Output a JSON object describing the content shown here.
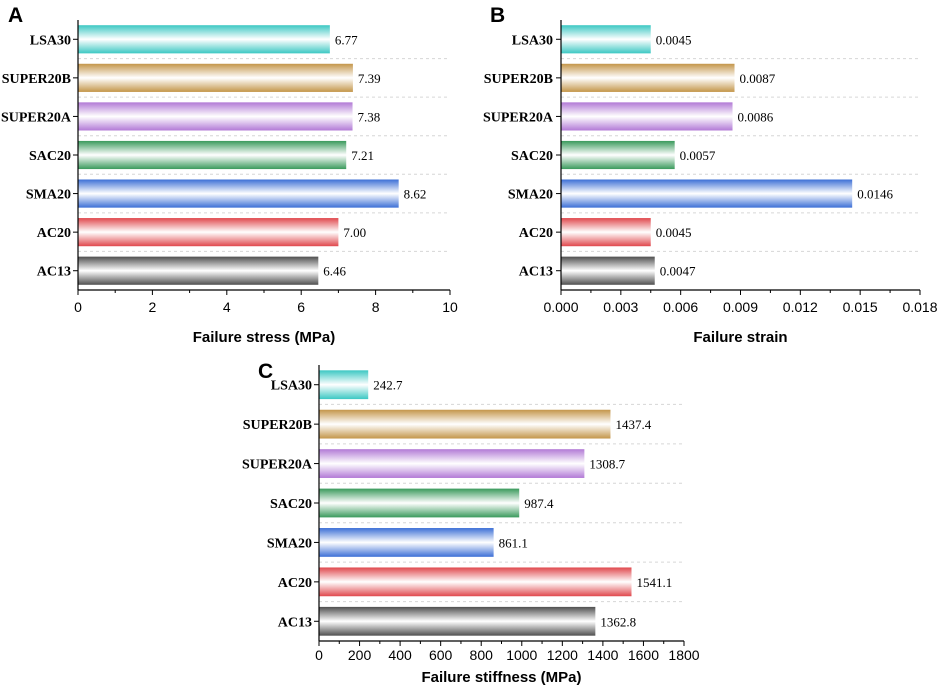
{
  "colors": {
    "LSA30": "#3cc8c3",
    "SUPER20B": "#c4964a",
    "SUPER20A": "#b27ad6",
    "SAC20": "#3a9a5c",
    "SMA20": "#3c6fd6",
    "AC20": "#e0484d",
    "AC13": "#4f4f4f"
  },
  "chart_data": [
    {
      "type": "bar",
      "orientation": "horizontal",
      "panel": "A",
      "categories": [
        "LSA30",
        "SUPER20B",
        "SUPER20A",
        "SAC20",
        "SMA20",
        "AC20",
        "AC13"
      ],
      "values": [
        6.77,
        7.39,
        7.38,
        7.21,
        8.62,
        7.0,
        6.46
      ],
      "value_labels": [
        "6.77",
        "7.39",
        "7.38",
        "7.21",
        "8.62",
        "7.00",
        "6.46"
      ],
      "xlabel": "Failure stress (MPa)",
      "xlim": [
        0,
        10
      ],
      "xticks": [
        "0",
        "2",
        "4",
        "6",
        "8",
        "10"
      ],
      "grid": "horizontal dashed"
    },
    {
      "type": "bar",
      "orientation": "horizontal",
      "panel": "B",
      "categories": [
        "LSA30",
        "SUPER20B",
        "SUPER20A",
        "SAC20",
        "SMA20",
        "AC20",
        "AC13"
      ],
      "values": [
        0.0045,
        0.0087,
        0.0086,
        0.0057,
        0.0146,
        0.0045,
        0.0047
      ],
      "value_labels": [
        "0.0045",
        "0.0087",
        "0.0086",
        "0.0057",
        "0.0146",
        "0.0045",
        "0.0047"
      ],
      "xlabel": "Failure strain",
      "xlim": [
        0,
        0.018
      ],
      "xticks": [
        "0.000",
        "0.003",
        "0.006",
        "0.009",
        "0.012",
        "0.015",
        "0.018"
      ],
      "grid": "horizontal dashed"
    },
    {
      "type": "bar",
      "orientation": "horizontal",
      "panel": "C",
      "categories": [
        "LSA30",
        "SUPER20B",
        "SUPER20A",
        "SAC20",
        "SMA20",
        "AC20",
        "AC13"
      ],
      "values": [
        242.7,
        1437.4,
        1308.7,
        987.4,
        861.1,
        1541.1,
        1362.8
      ],
      "value_labels": [
        "242.7",
        "1437.4",
        "1308.7",
        "987.4",
        "861.1",
        "1541.1",
        "1362.8"
      ],
      "xlabel": "Failure stiffness (MPa)",
      "xlim": [
        0,
        1800
      ],
      "xticks": [
        "0",
        "200",
        "400",
        "600",
        "800",
        "1000",
        "1200",
        "1400",
        "1600",
        "1800"
      ],
      "grid": "horizontal dashed"
    }
  ]
}
